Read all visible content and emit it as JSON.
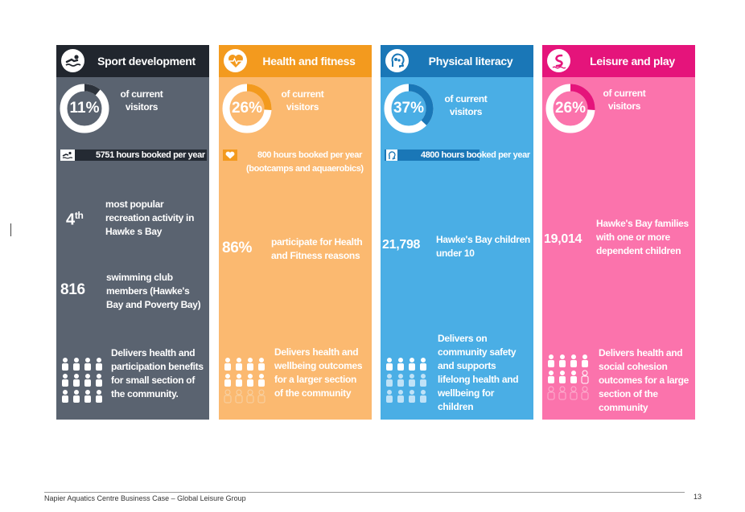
{
  "panels": [
    {
      "key": "sport",
      "header": "Sport development",
      "icon": "swimmer-icon",
      "colors": {
        "header": "#21262e",
        "body": "#5a6370",
        "accent": "#242a33",
        "ring_bg": "#ffffff",
        "ring_fg": "#2c323b"
      },
      "pct": "11%",
      "pct_value": 0.11,
      "visitors": "of current visitors",
      "hours": "5751 hours booked per year",
      "stat_a": {
        "value": "4",
        "sup": "th",
        "text": "most popular recreation activity in Hawke s Bay"
      },
      "stat_b": {
        "value": "816",
        "text": "swimming club members (Hawke's Bay and Poverty Bay)"
      },
      "delivers": "Delivers health and participation benefits for small section of the community.",
      "people_filled_rows": 3
    },
    {
      "key": "health",
      "header": "Health and fitness",
      "icon": "heart-pulse-icon",
      "colors": {
        "header": "#f39a1e",
        "body": "#fbb970",
        "accent": "#f39a1e",
        "ring_bg": "#ffffff",
        "ring_fg": "#f39a1e"
      },
      "pct": "26%",
      "pct_value": 0.26,
      "visitors": "of current visitors",
      "hours": "800 hours booked per year",
      "hours_sub": "(bootcamps and aquaerobics)",
      "stat_a": {
        "value": "86%",
        "text": "participate for Health and Fitness reasons"
      },
      "delivers": "Delivers health and wellbeing outcomes for a larger section of the community",
      "people_filled_rows": 2
    },
    {
      "key": "physical",
      "header": "Physical literacy",
      "icon": "brain-head-icon",
      "colors": {
        "header": "#1a77b7",
        "body": "#4aaee5",
        "accent": "#1a77b7",
        "ring_bg": "#ffffff",
        "ring_fg": "#1a77b7"
      },
      "pct": "37%",
      "pct_value": 0.37,
      "visitors": "of current visitors",
      "hours": "4800 hours booked per year",
      "stat_a": {
        "value": "21,798",
        "text": "Hawke's Bay children under 10"
      },
      "delivers": "Delivers on community safety and supports lifelong health and wellbeing for children",
      "people_filled_rows": 1
    },
    {
      "key": "leisure",
      "header": "Leisure and play",
      "icon": "water-slide-icon",
      "colors": {
        "header": "#e5147b",
        "body": "#fb73ac",
        "accent": "#e5147b",
        "ring_bg": "#ffffff",
        "ring_fg": "#e5147b"
      },
      "pct": "26%",
      "pct_value": 0.26,
      "visitors": "of current visitors",
      "stat_a": {
        "value": "19,014",
        "text": "Hawke's Bay families with one or more dependent children"
      },
      "delivers": "Delivers health and social cohesion outcomes for a large section of the community",
      "people_filled_rows": 2
    }
  ],
  "footer": {
    "text": "Napier Aquatics Centre Business Case – Global Leisure Group",
    "page": "13"
  }
}
